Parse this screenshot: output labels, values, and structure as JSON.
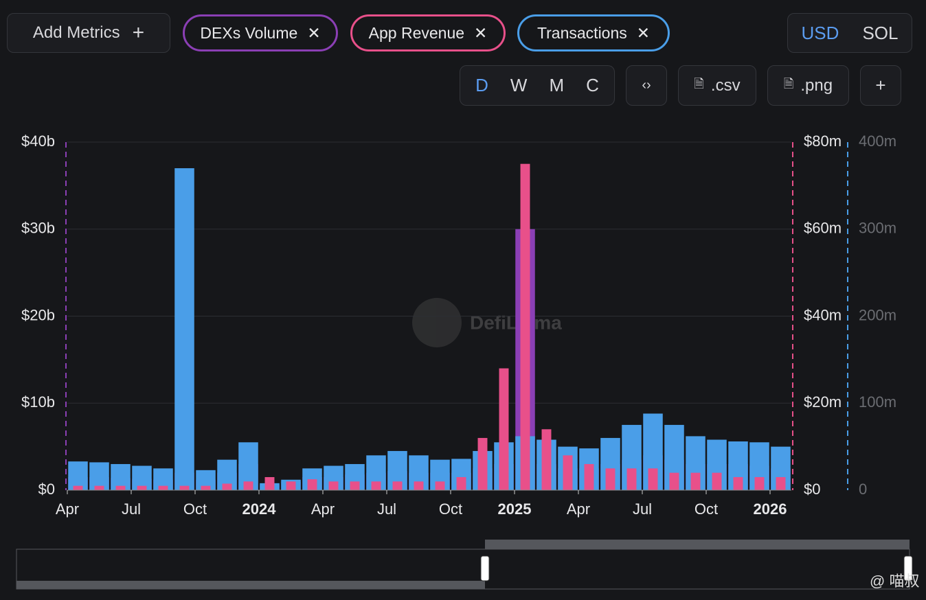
{
  "toolbar": {
    "add_metrics": "Add Metrics",
    "currency": [
      "USD",
      "SOL"
    ],
    "intervals": [
      "D",
      "W",
      "M",
      "C"
    ],
    "csv": ".csv",
    "png": ".png"
  },
  "watermark": "DefiLlama",
  "credit": "@ 喵叔",
  "chart_data": {
    "type": "bar",
    "categories": [
      "Apr",
      null,
      null,
      "Jul",
      null,
      null,
      "Oct",
      null,
      null,
      "2024",
      null,
      null,
      "Apr",
      null,
      null,
      "Jul",
      null,
      null,
      "Oct",
      null,
      null,
      "2025",
      null,
      null,
      "Apr",
      null,
      null,
      "Jul",
      null,
      null,
      "Oct",
      null,
      null,
      "2026"
    ],
    "series": [
      {
        "name": "DEXs Volume",
        "color": "#8b3fb5",
        "axis": "y",
        "values": [
          1500000000,
          1500000000,
          1400000000,
          1300000000,
          1200000000,
          2000000000,
          1200000000,
          2000000000,
          3000000000,
          600000000,
          1000000000,
          1500000000,
          1500000000,
          1800000000,
          2000000000,
          2200000000,
          2000000000,
          2000000000,
          2000000000,
          2500000000,
          3000000000,
          30000000000,
          3000000000,
          2500000000,
          2500000000,
          3000000000,
          3500000000,
          4000000000,
          3500000000,
          3000000000,
          3000000000,
          3000000000,
          2800000000,
          2500000000
        ]
      },
      {
        "name": "App Revenue",
        "color": "#e8508a",
        "axis": "y2",
        "values": [
          1000000,
          1000000,
          1000000,
          1000000,
          1000000,
          1000000,
          1000000,
          1500000,
          2000000,
          3000000,
          2000000,
          2500000,
          2000000,
          2000000,
          2000000,
          2000000,
          2000000,
          2000000,
          3000000,
          12000000,
          28000000,
          75000000,
          14000000,
          8000000,
          6000000,
          5000000,
          5000000,
          5000000,
          4000000,
          4000000,
          4000000,
          3000000,
          3000000,
          3000000
        ]
      },
      {
        "name": "Transactions",
        "color": "#4a9ee8",
        "axis": "y3",
        "values": [
          33000000,
          32000000,
          30000000,
          28000000,
          25000000,
          370000000,
          23000000,
          35000000,
          55000000,
          8000000,
          12000000,
          25000000,
          28000000,
          30000000,
          40000000,
          45000000,
          40000000,
          35000000,
          36000000,
          45000000,
          55000000,
          62000000,
          58000000,
          50000000,
          48000000,
          60000000,
          75000000,
          88000000,
          75000000,
          62000000,
          58000000,
          56000000,
          55000000,
          50000000
        ]
      }
    ],
    "ylim": [
      0,
      40000000000
    ],
    "yticks": [
      {
        "value": 0,
        "label": "$0"
      },
      {
        "value": 10000000000,
        "label": "$10b"
      },
      {
        "value": 20000000000,
        "label": "$20b"
      },
      {
        "value": 30000000000,
        "label": "$30b"
      },
      {
        "value": 40000000000,
        "label": "$40b"
      }
    ],
    "y2lim": [
      0,
      80000000
    ],
    "y2ticks": [
      {
        "value": 0,
        "label": "$0"
      },
      {
        "value": 20000000,
        "label": "$20m"
      },
      {
        "value": 40000000,
        "label": "$40m"
      },
      {
        "value": 60000000,
        "label": "$60m"
      },
      {
        "value": 80000000,
        "label": "$80m"
      }
    ],
    "y3lim": [
      0,
      400000000
    ],
    "y3ticks": [
      0,
      {
        "value": 100000000,
        "label": "100m"
      },
      {
        "value": 200000000,
        "label": "200m"
      },
      {
        "value": 300000000,
        "label": "300m"
      },
      {
        "value": 400000000,
        "label": "400m"
      }
    ],
    "grid": true
  }
}
